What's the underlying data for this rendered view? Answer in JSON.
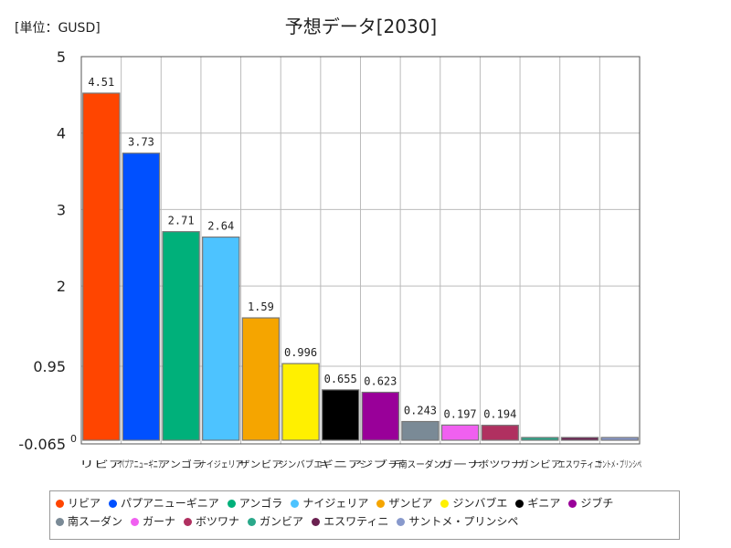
{
  "chart_data": {
    "type": "bar",
    "title": "予想データ[2030]",
    "unit_label": "[単位：GUSD]",
    "categories": [
      "リビア",
      "パプアニューギニア",
      "アンゴラ",
      "ナイジェリア",
      "ザンビア",
      "ジンバブエ",
      "ギニア",
      "ジブチ",
      "南スーダン",
      "ガーナ",
      "ボツワナ",
      "ガンビア",
      "エスワティニ",
      "サントメ・プリンシペ"
    ],
    "values": [
      4.51,
      3.73,
      2.71,
      2.64,
      1.59,
      0.996,
      0.655,
      0.623,
      0.243,
      0.197,
      0.194,
      0.0,
      0.0,
      0.0
    ],
    "data_labels": [
      "4.51",
      "3.73",
      "2.71",
      "2.64",
      "1.59",
      "0.996",
      "0.655",
      "0.623",
      "0.243",
      "0.197",
      "0.194",
      "",
      "",
      ""
    ],
    "colors": [
      "#ff4500",
      "#0050ff",
      "#00b07a",
      "#4dc3ff",
      "#f5a500",
      "#fff000",
      "#000000",
      "#990099",
      "#7a8a96",
      "#f060f0",
      "#b03060",
      "#2aa88a",
      "#6a2050",
      "#8899cc"
    ],
    "ylim": [
      -0.065,
      5
    ],
    "yticks": [
      {
        "value": 5,
        "label": "5"
      },
      {
        "value": 4,
        "label": "4"
      },
      {
        "value": 3,
        "label": "3"
      },
      {
        "value": 2,
        "label": "2"
      },
      {
        "value": 0.95,
        "label": "0.95"
      },
      {
        "value": -0.065,
        "label": "-0.065"
      }
    ],
    "zero_label": "0",
    "legend_position": "bottom",
    "grid": true
  }
}
